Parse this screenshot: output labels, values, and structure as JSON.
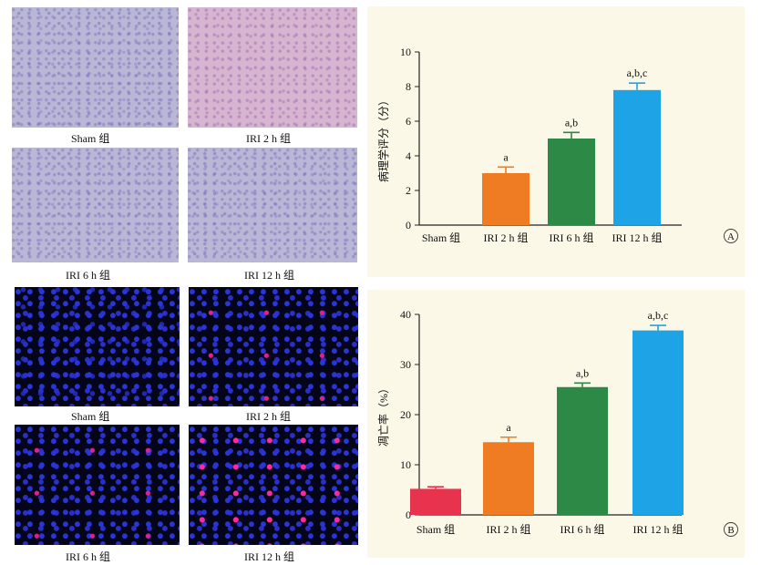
{
  "captions": {
    "top_sham": "Sham 组",
    "top_iri2": "IRI 2 h 组",
    "top_iri6": "IRI 6 h 组",
    "top_iri12": "IRI 12 h 组",
    "bot_sham": "Sham 组",
    "bot_iri2": "IRI 2 h 组",
    "bot_iri6": "IRI 6 h 组",
    "bot_iri12": "IRI 12 h 组"
  },
  "chart_data": [
    {
      "type": "bar",
      "panel_label": "A",
      "ylabel": "病理学评分（分）",
      "ylim": [
        0,
        10
      ],
      "yticks": [
        0,
        2,
        4,
        6,
        8,
        10
      ],
      "categories": [
        "Sham 组",
        "IRI 2 h 组",
        "IRI 6 h 组",
        "IRI 12 h 组"
      ],
      "values": [
        0,
        3.0,
        5.0,
        7.8
      ],
      "errors": [
        0,
        0.35,
        0.35,
        0.4
      ],
      "annotations": [
        "",
        "a",
        "a,b",
        "a,b,c"
      ],
      "colors": [
        "#e8334f",
        "#ef7b22",
        "#2c8a46",
        "#1ea3e6"
      ]
    },
    {
      "type": "bar",
      "panel_label": "B",
      "ylabel": "凋亡率（%）",
      "ylim": [
        0,
        40
      ],
      "yticks": [
        0,
        10,
        20,
        30,
        40
      ],
      "categories": [
        "Sham 组",
        "IRI 2 h 组",
        "IRI 6 h 组",
        "IRI 12 h 组"
      ],
      "values": [
        5.2,
        14.5,
        25.5,
        36.8
      ],
      "errors": [
        0.4,
        1.0,
        0.8,
        1.0
      ],
      "annotations": [
        "",
        "a",
        "a,b",
        "a,b,c"
      ],
      "colors": [
        "#e8334f",
        "#ef7b22",
        "#2c8a46",
        "#1ea3e6"
      ]
    }
  ]
}
